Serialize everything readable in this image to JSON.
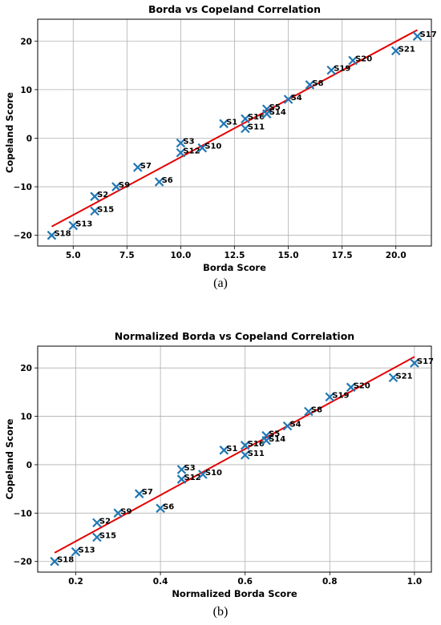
{
  "chart_data": [
    {
      "type": "scatter",
      "title": "Borda vs Copeland Correlation",
      "xlabel": "Borda Score",
      "ylabel": "Copeland Score",
      "xlim": [
        3.35,
        21.65
      ],
      "ylim": [
        -22.2,
        24.5
      ],
      "xticks": [
        5.0,
        7.5,
        10.0,
        12.5,
        15.0,
        17.5,
        20.0
      ],
      "xtick_labels": [
        "5.0",
        "7.5",
        "10.0",
        "12.5",
        "15.0",
        "17.5",
        "20.0"
      ],
      "yticks": [
        -20,
        -10,
        0,
        10,
        20
      ],
      "ytick_labels": [
        "−20",
        "−10",
        "0",
        "10",
        "20"
      ],
      "grid": true,
      "marker_color": "#1f77b4",
      "line_color": "#e60000",
      "fit_line": {
        "x": [
          4,
          21
        ],
        "y": [
          -18.2,
          22.3
        ]
      },
      "points": [
        {
          "label": "S18",
          "x": 4,
          "y": -20
        },
        {
          "label": "S13",
          "x": 5,
          "y": -18
        },
        {
          "label": "S15",
          "x": 6,
          "y": -15
        },
        {
          "label": "S2",
          "x": 6,
          "y": -12
        },
        {
          "label": "S9",
          "x": 7,
          "y": -10
        },
        {
          "label": "S7",
          "x": 8,
          "y": -6
        },
        {
          "label": "S6",
          "x": 9,
          "y": -9
        },
        {
          "label": "S3",
          "x": 10,
          "y": -1
        },
        {
          "label": "S12",
          "x": 10,
          "y": -3
        },
        {
          "label": "S10",
          "x": 11,
          "y": -2
        },
        {
          "label": "S1",
          "x": 12,
          "y": 3
        },
        {
          "label": "S16",
          "x": 13,
          "y": 4
        },
        {
          "label": "S11",
          "x": 13,
          "y": 2
        },
        {
          "label": "S5",
          "x": 14,
          "y": 6
        },
        {
          "label": "S14",
          "x": 14,
          "y": 5
        },
        {
          "label": "S4",
          "x": 15,
          "y": 8
        },
        {
          "label": "S8",
          "x": 16,
          "y": 11
        },
        {
          "label": "S19",
          "x": 17,
          "y": 14
        },
        {
          "label": "S20",
          "x": 18,
          "y": 16
        },
        {
          "label": "S21",
          "x": 20,
          "y": 18
        },
        {
          "label": "S17",
          "x": 21,
          "y": 21
        }
      ]
    },
    {
      "type": "scatter",
      "title": "Normalized Borda vs Copeland Correlation",
      "xlabel": "Normalized Borda Score",
      "ylabel": "Copeland Score",
      "xlim": [
        0.11,
        1.04
      ],
      "ylim": [
        -22.2,
        24.5
      ],
      "xticks": [
        0.2,
        0.4,
        0.6,
        0.8,
        1.0
      ],
      "xtick_labels": [
        "0.2",
        "0.4",
        "0.6",
        "0.8",
        "1.0"
      ],
      "yticks": [
        -20,
        -10,
        0,
        10,
        20
      ],
      "ytick_labels": [
        "−20",
        "−10",
        "0",
        "10",
        "20"
      ],
      "grid": true,
      "marker_color": "#1f77b4",
      "line_color": "#e60000",
      "fit_line": {
        "x": [
          0.15,
          1.0
        ],
        "y": [
          -18.2,
          22.3
        ]
      },
      "points": [
        {
          "label": "S18",
          "x": 0.15,
          "y": -20
        },
        {
          "label": "S13",
          "x": 0.2,
          "y": -18
        },
        {
          "label": "S15",
          "x": 0.25,
          "y": -15
        },
        {
          "label": "S2",
          "x": 0.25,
          "y": -12
        },
        {
          "label": "S9",
          "x": 0.3,
          "y": -10
        },
        {
          "label": "S7",
          "x": 0.35,
          "y": -6
        },
        {
          "label": "S6",
          "x": 0.4,
          "y": -9
        },
        {
          "label": "S3",
          "x": 0.45,
          "y": -1
        },
        {
          "label": "S12",
          "x": 0.45,
          "y": -3
        },
        {
          "label": "S10",
          "x": 0.5,
          "y": -2
        },
        {
          "label": "S1",
          "x": 0.55,
          "y": 3
        },
        {
          "label": "S16",
          "x": 0.6,
          "y": 4
        },
        {
          "label": "S11",
          "x": 0.6,
          "y": 2
        },
        {
          "label": "S5",
          "x": 0.65,
          "y": 6
        },
        {
          "label": "S14",
          "x": 0.65,
          "y": 5
        },
        {
          "label": "S4",
          "x": 0.7,
          "y": 8
        },
        {
          "label": "S8",
          "x": 0.75,
          "y": 11
        },
        {
          "label": "S19",
          "x": 0.8,
          "y": 14
        },
        {
          "label": "S20",
          "x": 0.85,
          "y": 16
        },
        {
          "label": "S21",
          "x": 0.95,
          "y": 18
        },
        {
          "label": "S17",
          "x": 1.0,
          "y": 21
        }
      ]
    }
  ],
  "captions": {
    "a": "(a)",
    "b": "(b)"
  }
}
